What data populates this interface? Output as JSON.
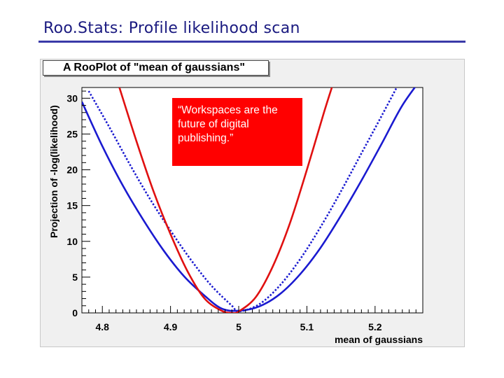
{
  "slide": {
    "title": "Roo.Stats: Profile likelihood scan"
  },
  "callout": {
    "text": "“Workspaces are the future of digital publishing.”"
  },
  "chart_data": {
    "type": "line",
    "title": "A RooPlot of \"mean of gaussians\"",
    "xlabel": "mean of gaussians",
    "ylabel": "Projection of -log(likelihood)",
    "xlim": [
      4.77,
      5.27
    ],
    "ylim": [
      0,
      31.5
    ],
    "xticks": [
      4.8,
      4.9,
      5,
      5.1,
      5.2
    ],
    "xtick_labels": [
      "4.8",
      "4.9",
      "5",
      "5.1",
      "5.2"
    ],
    "yticks": [
      0,
      5,
      10,
      15,
      20,
      25,
      30
    ],
    "ytick_labels": [
      "0",
      "5",
      "10",
      "15",
      "20",
      "25",
      "30"
    ],
    "grid": false,
    "series": [
      {
        "color": "#1a1ad0",
        "style": "solid",
        "x": [
          4.77,
          4.8,
          4.83,
          4.86,
          4.89,
          4.92,
          4.95,
          4.975,
          5.0,
          5.03,
          5.06,
          5.09,
          5.12,
          5.15,
          5.18,
          5.21,
          5.24,
          5.27
        ],
        "y": [
          29.5,
          23.3,
          17.8,
          13.0,
          8.7,
          5.1,
          2.4,
          0.6,
          0.3,
          0.9,
          2.6,
          5.4,
          9.1,
          13.6,
          18.5,
          23.7,
          29.0,
          33.0
        ]
      },
      {
        "color": "#1a1ad0",
        "style": "dotted",
        "x": [
          4.78,
          4.81,
          4.84,
          4.87,
          4.9,
          4.93,
          4.96,
          4.99,
          5.0,
          5.03,
          5.06,
          5.09,
          5.12,
          5.15,
          5.18,
          5.21,
          5.24
        ],
        "y": [
          31.0,
          26.0,
          20.8,
          15.9,
          11.5,
          7.4,
          3.8,
          1.0,
          0.2,
          1.2,
          3.8,
          7.5,
          12.0,
          17.0,
          22.3,
          27.6,
          33.0
        ]
      },
      {
        "color": "#e01010",
        "style": "solid",
        "x": [
          4.825,
          4.85,
          4.875,
          4.9,
          4.925,
          4.95,
          4.975,
          4.99,
          5.0,
          5.025,
          5.05,
          5.075,
          5.1,
          5.125,
          5.14
        ],
        "y": [
          31.5,
          24.0,
          17.0,
          11.0,
          5.8,
          2.0,
          0.3,
          0.0,
          0.2,
          2.2,
          6.5,
          12.5,
          20.0,
          28.0,
          32.5
        ]
      }
    ]
  }
}
